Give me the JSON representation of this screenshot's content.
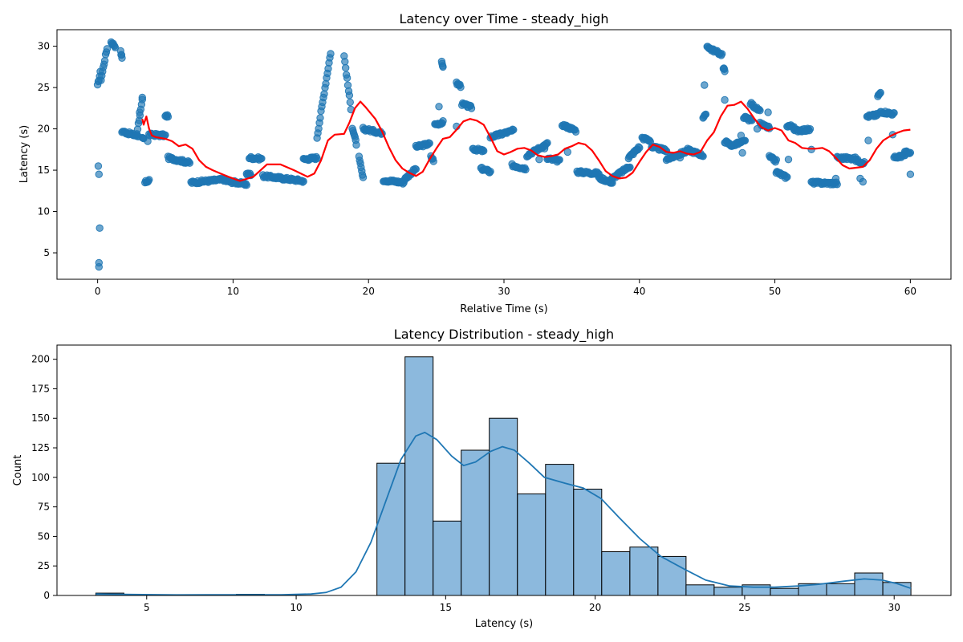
{
  "chart_data": [
    {
      "type": "scatter",
      "title": "Latency over Time - steady_high",
      "xlabel": "Relative Time (s)",
      "ylabel": "Latency (s)",
      "xlim": [
        -3,
        63
      ],
      "ylim": [
        1.8,
        32
      ],
      "xticks": [
        0,
        10,
        20,
        30,
        40,
        50,
        60
      ],
      "yticks": [
        5,
        10,
        15,
        20,
        25,
        30
      ],
      "grid": false,
      "point_color": "#1f77b4",
      "line_color": "#ff0000",
      "segments": [
        [
          0.0,
          0.2,
          25.2,
          26.8
        ],
        [
          0.25,
          0.7,
          26.0,
          29.8
        ],
        [
          1.0,
          1.3,
          30.5,
          30.0
        ],
        [
          1.7,
          1.8,
          29.3,
          28.6
        ],
        [
          1.8,
          3.0,
          19.7,
          19.1
        ],
        [
          2.9,
          3.3,
          19.5,
          23.4
        ],
        [
          3.3,
          3.4,
          18.8,
          18.8
        ],
        [
          3.5,
          3.8,
          13.5,
          13.8
        ],
        [
          3.8,
          5.0,
          19.3,
          19.2
        ],
        [
          5.0,
          5.2,
          21.5,
          21.6
        ],
        [
          5.2,
          6.8,
          16.5,
          15.9
        ],
        [
          6.9,
          9.5,
          13.5,
          13.9
        ],
        [
          9.5,
          11.0,
          13.7,
          13.3
        ],
        [
          11.0,
          11.3,
          14.5,
          14.5
        ],
        [
          11.2,
          12.1,
          16.5,
          16.4
        ],
        [
          12.2,
          15.2,
          14.3,
          13.7
        ],
        [
          15.2,
          16.2,
          16.3,
          16.5
        ],
        [
          16.2,
          17.2,
          19.0,
          29.2
        ],
        [
          18.2,
          18.7,
          28.8,
          22.5
        ],
        [
          18.8,
          19.1,
          20.2,
          18.2
        ],
        [
          19.3,
          19.6,
          16.5,
          14.0
        ],
        [
          19.6,
          21.0,
          20.0,
          19.5
        ],
        [
          21.1,
          22.6,
          13.8,
          13.5
        ],
        [
          22.6,
          23.5,
          13.8,
          15.2
        ],
        [
          23.5,
          24.5,
          17.8,
          18.2
        ],
        [
          24.6,
          24.8,
          16.6,
          16.2
        ],
        [
          24.9,
          25.5,
          20.5,
          20.8
        ],
        [
          25.4,
          25.5,
          28.0,
          27.6
        ],
        [
          26.5,
          26.8,
          25.5,
          25.2
        ],
        [
          26.9,
          27.6,
          23.0,
          22.6
        ],
        [
          27.7,
          28.5,
          17.6,
          17.3
        ],
        [
          28.3,
          29.0,
          15.2,
          14.8
        ],
        [
          29.0,
          30.7,
          19.0,
          19.8
        ],
        [
          30.6,
          31.6,
          15.6,
          15.2
        ],
        [
          31.7,
          33.2,
          16.8,
          18.2
        ],
        [
          33.2,
          34.1,
          16.4,
          16.1
        ],
        [
          34.3,
          35.3,
          20.5,
          19.8
        ],
        [
          35.4,
          37.0,
          14.8,
          14.6
        ],
        [
          37.0,
          38.0,
          14.1,
          13.5
        ],
        [
          38.0,
          39.3,
          14.0,
          15.5
        ],
        [
          39.2,
          40.0,
          16.5,
          17.8
        ],
        [
          40.2,
          40.8,
          18.9,
          18.6
        ],
        [
          40.9,
          42.0,
          17.8,
          17.4
        ],
        [
          42.0,
          43.5,
          16.3,
          17.3
        ],
        [
          43.5,
          44.7,
          17.5,
          16.8
        ],
        [
          44.7,
          44.9,
          21.4,
          21.6
        ],
        [
          45.0,
          45.2,
          30.0,
          29.8
        ],
        [
          45.2,
          46.1,
          29.7,
          29.0
        ],
        [
          46.2,
          46.3,
          27.3,
          27.0
        ],
        [
          46.3,
          46.9,
          18.5,
          17.9
        ],
        [
          47.0,
          47.8,
          18.1,
          18.5
        ],
        [
          47.7,
          48.3,
          21.4,
          21.0
        ],
        [
          48.2,
          48.9,
          23.1,
          22.1
        ],
        [
          48.9,
          49.6,
          20.6,
          20.1
        ],
        [
          49.6,
          50.1,
          16.6,
          16.1
        ],
        [
          50.1,
          50.9,
          14.8,
          14.1
        ],
        [
          50.9,
          51.4,
          20.4,
          20.3
        ],
        [
          51.4,
          52.6,
          19.8,
          19.9
        ],
        [
          52.7,
          54.6,
          13.5,
          13.4
        ],
        [
          54.6,
          56.0,
          16.5,
          16.4
        ],
        [
          56.0,
          56.6,
          16.2,
          15.9
        ],
        [
          56.8,
          57.6,
          21.5,
          21.7
        ],
        [
          57.6,
          57.8,
          24.0,
          24.3
        ],
        [
          57.8,
          58.8,
          22.1,
          21.8
        ],
        [
          58.8,
          59.6,
          16.5,
          16.8
        ],
        [
          59.6,
          60.0,
          17.2,
          17.0
        ]
      ],
      "extra_points": [
        [
          0.05,
          15.5
        ],
        [
          0.1,
          14.5
        ],
        [
          0.15,
          8.0
        ],
        [
          0.1,
          3.8
        ],
        [
          0.1,
          3.3
        ],
        [
          3.3,
          23.8
        ],
        [
          3.1,
          22.0
        ],
        [
          3.7,
          18.5
        ],
        [
          25.2,
          22.7
        ],
        [
          44.8,
          25.3
        ],
        [
          46.3,
          23.5
        ],
        [
          47.5,
          19.2
        ],
        [
          47.6,
          17.1
        ],
        [
          48.7,
          20.0
        ],
        [
          49.5,
          22.0
        ],
        [
          51.0,
          16.3
        ],
        [
          52.7,
          17.5
        ],
        [
          54.5,
          14.0
        ],
        [
          56.3,
          14.0
        ],
        [
          56.5,
          13.6
        ],
        [
          56.9,
          18.6
        ],
        [
          58.7,
          19.3
        ],
        [
          60.0,
          14.5
        ],
        [
          26.5,
          20.3
        ],
        [
          32.6,
          16.3
        ],
        [
          33.0,
          17.6
        ],
        [
          34.7,
          17.2
        ],
        [
          43.0,
          16.5
        ]
      ],
      "rolling_mean": [
        [
          3.3,
          21.2
        ],
        [
          3.4,
          20.5
        ],
        [
          3.6,
          21.5
        ],
        [
          3.8,
          20.0
        ],
        [
          4.0,
          19.2
        ],
        [
          4.3,
          19.0
        ],
        [
          5.0,
          18.8
        ],
        [
          5.5,
          18.5
        ],
        [
          6.0,
          17.9
        ],
        [
          6.5,
          18.1
        ],
        [
          7.0,
          17.6
        ],
        [
          7.5,
          16.2
        ],
        [
          8.0,
          15.4
        ],
        [
          8.5,
          15.0
        ],
        [
          9.5,
          14.3
        ],
        [
          10.5,
          13.7
        ],
        [
          11.5,
          14.2
        ],
        [
          12.5,
          15.7
        ],
        [
          13.5,
          15.7
        ],
        [
          14.5,
          15.0
        ],
        [
          15.5,
          14.2
        ],
        [
          16.0,
          14.6
        ],
        [
          16.5,
          16.2
        ],
        [
          17.0,
          18.6
        ],
        [
          17.5,
          19.3
        ],
        [
          18.2,
          19.4
        ],
        [
          18.6,
          20.8
        ],
        [
          19.0,
          22.5
        ],
        [
          19.4,
          23.3
        ],
        [
          19.8,
          22.6
        ],
        [
          20.5,
          21.2
        ],
        [
          21.0,
          19.7
        ],
        [
          21.5,
          17.8
        ],
        [
          22.0,
          16.2
        ],
        [
          22.5,
          15.2
        ],
        [
          23.0,
          14.7
        ],
        [
          23.5,
          14.3
        ],
        [
          24.0,
          14.8
        ],
        [
          24.5,
          16.3
        ],
        [
          25.0,
          17.6
        ],
        [
          25.5,
          18.8
        ],
        [
          26.0,
          19.0
        ],
        [
          26.5,
          19.9
        ],
        [
          27.0,
          20.9
        ],
        [
          27.5,
          21.2
        ],
        [
          28.0,
          21.0
        ],
        [
          28.5,
          20.5
        ],
        [
          29.0,
          19.0
        ],
        [
          29.5,
          17.3
        ],
        [
          30.0,
          16.9
        ],
        [
          30.5,
          17.2
        ],
        [
          31.0,
          17.6
        ],
        [
          31.5,
          17.7
        ],
        [
          32.0,
          17.4
        ],
        [
          32.5,
          16.8
        ],
        [
          33.0,
          16.6
        ],
        [
          33.5,
          16.7
        ],
        [
          34.0,
          16.9
        ],
        [
          34.5,
          17.6
        ],
        [
          35.0,
          17.9
        ],
        [
          35.5,
          18.3
        ],
        [
          36.0,
          18.1
        ],
        [
          36.5,
          17.4
        ],
        [
          37.0,
          16.2
        ],
        [
          37.5,
          14.9
        ],
        [
          38.0,
          14.3
        ],
        [
          38.5,
          14.0
        ],
        [
          39.0,
          14.1
        ],
        [
          39.5,
          14.7
        ],
        [
          40.0,
          16.0
        ],
        [
          40.5,
          17.2
        ],
        [
          41.0,
          18.1
        ],
        [
          41.5,
          17.8
        ],
        [
          42.0,
          17.2
        ],
        [
          42.5,
          17.1
        ],
        [
          43.0,
          17.3
        ],
        [
          43.5,
          17.0
        ],
        [
          44.0,
          16.9
        ],
        [
          44.5,
          17.2
        ],
        [
          45.0,
          18.6
        ],
        [
          45.5,
          19.6
        ],
        [
          46.0,
          21.5
        ],
        [
          46.5,
          22.8
        ],
        [
          47.0,
          22.9
        ],
        [
          47.5,
          23.3
        ],
        [
          48.0,
          22.4
        ],
        [
          48.5,
          21.2
        ],
        [
          49.0,
          20.2
        ],
        [
          49.5,
          19.8
        ],
        [
          50.0,
          20.1
        ],
        [
          50.5,
          19.8
        ],
        [
          51.0,
          18.6
        ],
        [
          51.5,
          18.3
        ],
        [
          52.0,
          17.7
        ],
        [
          52.5,
          17.6
        ],
        [
          53.0,
          17.6
        ],
        [
          53.5,
          17.7
        ],
        [
          54.0,
          17.3
        ],
        [
          54.5,
          16.5
        ],
        [
          55.0,
          15.6
        ],
        [
          55.5,
          15.2
        ],
        [
          56.0,
          15.3
        ],
        [
          56.5,
          15.4
        ],
        [
          57.0,
          16.2
        ],
        [
          57.5,
          17.6
        ],
        [
          58.0,
          18.6
        ],
        [
          58.5,
          19.1
        ],
        [
          59.0,
          19.5
        ],
        [
          59.5,
          19.8
        ],
        [
          60.0,
          19.9
        ]
      ]
    },
    {
      "type": "bar",
      "title": "Latency Distribution - steady_high",
      "xlabel": "Latency (s)",
      "ylabel": "Count",
      "xlim": [
        2.0,
        31.9
      ],
      "ylim": [
        0,
        212
      ],
      "xticks": [
        5,
        10,
        15,
        20,
        25,
        30
      ],
      "yticks": [
        0,
        25,
        50,
        75,
        100,
        125,
        150,
        175,
        200
      ],
      "grid": false,
      "bar_color": "#7fb1d9",
      "line_color": "#1f77b4",
      "bin_edges": [
        3.3,
        4.24,
        5.18,
        6.12,
        7.06,
        8.0,
        8.94,
        9.88,
        10.82,
        11.76,
        12.7,
        13.64,
        14.58,
        15.52,
        16.46,
        17.4,
        18.34,
        19.28,
        20.22,
        21.16,
        22.1,
        23.04,
        23.98,
        24.92,
        25.86,
        26.8,
        27.74,
        28.68,
        29.62,
        30.56
      ],
      "counts": [
        2,
        0,
        0,
        0,
        0,
        1,
        0,
        0,
        0,
        0,
        112,
        202,
        63,
        123,
        150,
        86,
        111,
        90,
        37,
        41,
        33,
        9,
        7,
        9,
        6,
        10,
        10,
        19,
        11
      ],
      "kde": [
        [
          3.3,
          1.2
        ],
        [
          4.5,
          0.8
        ],
        [
          6.0,
          0.5
        ],
        [
          8.0,
          0.6
        ],
        [
          9.5,
          0.6
        ],
        [
          10.5,
          1.2
        ],
        [
          11.0,
          2.5
        ],
        [
          11.5,
          7
        ],
        [
          12.0,
          20
        ],
        [
          12.5,
          45
        ],
        [
          13.0,
          80
        ],
        [
          13.5,
          115
        ],
        [
          14.0,
          135
        ],
        [
          14.3,
          138
        ],
        [
          14.7,
          132
        ],
        [
          15.2,
          118
        ],
        [
          15.6,
          110
        ],
        [
          16.0,
          113
        ],
        [
          16.5,
          122
        ],
        [
          16.9,
          126
        ],
        [
          17.3,
          123
        ],
        [
          17.8,
          112
        ],
        [
          18.3,
          100
        ],
        [
          19.0,
          95
        ],
        [
          19.6,
          91
        ],
        [
          20.2,
          82
        ],
        [
          20.8,
          66
        ],
        [
          21.5,
          48
        ],
        [
          22.2,
          33
        ],
        [
          23.0,
          22
        ],
        [
          23.7,
          13
        ],
        [
          24.5,
          8
        ],
        [
          25.3,
          7
        ],
        [
          26.0,
          7
        ],
        [
          26.8,
          8
        ],
        [
          27.5,
          9.5
        ],
        [
          28.3,
          12
        ],
        [
          29.0,
          14
        ],
        [
          29.6,
          13
        ],
        [
          30.1,
          10
        ],
        [
          30.56,
          6
        ]
      ]
    }
  ]
}
